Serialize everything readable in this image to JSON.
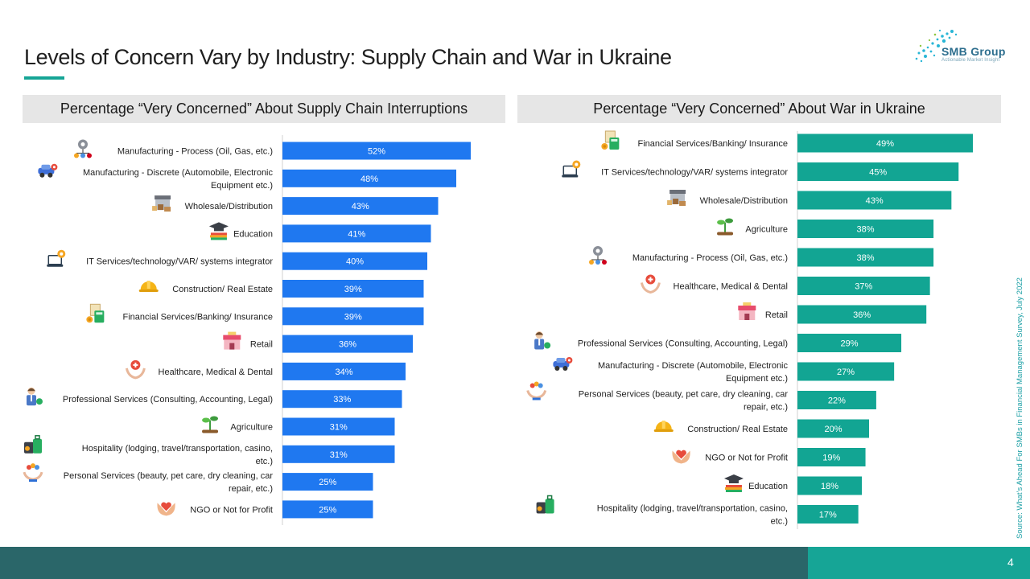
{
  "slide": {
    "title": "Levels of Concern Vary by Industry: Supply Chain and War in Ukraine",
    "logo_name": "SMB Group",
    "logo_tagline": "Actionable Market Insight",
    "source": "Source: What’s Ahead For SMBs in Financial Management Survey, July 2022",
    "page_number": "4",
    "colors": {
      "left_bars": "#1f78f0",
      "right_bars": "#12a593",
      "accent": "#16a596",
      "footer": "#2a6669"
    }
  },
  "chart_data": [
    {
      "type": "bar",
      "orientation": "horizontal",
      "title": "Percentage “Very Concerned” About Supply Chain Interruptions",
      "categories": [
        [
          "Manufacturing - Process (Oil, Gas, etc.)"
        ],
        [
          "Manufacturing - Discrete (Automobile, Electronic",
          "Equipment etc.)"
        ],
        [
          "Wholesale/Distribution"
        ],
        [
          "Education"
        ],
        [
          "IT Services/technology/VAR/ systems integrator"
        ],
        [
          "Construction/ Real Estate"
        ],
        [
          "Financial Services/Banking/ Insurance"
        ],
        [
          "Retail"
        ],
        [
          "Healthcare, Medical & Dental"
        ],
        [
          "Professional Services (Consulting, Accounting, Legal)"
        ],
        [
          "Agriculture"
        ],
        [
          "Hospitality (lodging, travel/transportation, casino,",
          "etc.)"
        ],
        [
          "Personal Services (beauty, pet care, dry cleaning, car",
          "repair, etc.)"
        ],
        [
          "NGO or Not for Profit"
        ]
      ],
      "icons": [
        "gear-network-icon",
        "car-gear-icon",
        "warehouse-icon",
        "graduation-cap-icon",
        "laptop-gear-icon",
        "hard-hat-icon",
        "calculator-coins-icon",
        "storefront-icon",
        "hand-heart-icon",
        "professional-person-icon",
        "seedling-icon",
        "luggage-icon",
        "hand-service-icon",
        "heart-hands-icon"
      ],
      "values": [
        52,
        48,
        43,
        41,
        40,
        39,
        39,
        36,
        34,
        33,
        31,
        31,
        25,
        25
      ],
      "data_labels": [
        "52%",
        "48%",
        "43%",
        "41%",
        "40%",
        "39%",
        "39%",
        "36%",
        "34%",
        "33%",
        "31%",
        "31%",
        "25%",
        "25%"
      ],
      "xlim": [
        0,
        60
      ],
      "grid": false,
      "bar_color": "#1f78f0"
    },
    {
      "type": "bar",
      "orientation": "horizontal",
      "title": "Percentage “Very Concerned” About War in Ukraine",
      "categories": [
        [
          "Financial Services/Banking/ Insurance"
        ],
        [
          "IT Services/technology/VAR/ systems integrator"
        ],
        [
          "Wholesale/Distribution"
        ],
        [
          "Agriculture"
        ],
        [
          "Manufacturing - Process (Oil, Gas, etc.)"
        ],
        [
          "Healthcare, Medical & Dental"
        ],
        [
          "Retail"
        ],
        [
          "Professional Services (Consulting, Accounting, Legal)"
        ],
        [
          "Manufacturing - Discrete (Automobile, Electronic",
          "Equipment etc.)"
        ],
        [
          "Personal Services (beauty, pet care, dry cleaning, car",
          "repair, etc.)"
        ],
        [
          "Construction/ Real Estate"
        ],
        [
          "NGO or Not for Profit"
        ],
        [
          "Education"
        ],
        [
          "Hospitality (lodging, travel/transportation, casino,",
          "etc.)"
        ]
      ],
      "icons": [
        "calculator-coins-icon",
        "laptop-gear-icon",
        "warehouse-icon",
        "seedling-icon",
        "gear-network-icon",
        "hand-heart-icon",
        "storefront-icon",
        "professional-person-icon",
        "car-gear-icon",
        "hand-service-icon",
        "hard-hat-icon",
        "heart-hands-icon",
        "graduation-cap-icon",
        "luggage-icon"
      ],
      "values": [
        49,
        45,
        43,
        38,
        38,
        37,
        36,
        29,
        27,
        22,
        20,
        19,
        18,
        17
      ],
      "data_labels": [
        "49%",
        "45%",
        "43%",
        "38%",
        "38%",
        "37%",
        "36%",
        "29%",
        "27%",
        "22%",
        "20%",
        "19%",
        "18%",
        "17%"
      ],
      "xlim": [
        0,
        60
      ],
      "grid": false,
      "bar_color": "#12a593"
    }
  ]
}
